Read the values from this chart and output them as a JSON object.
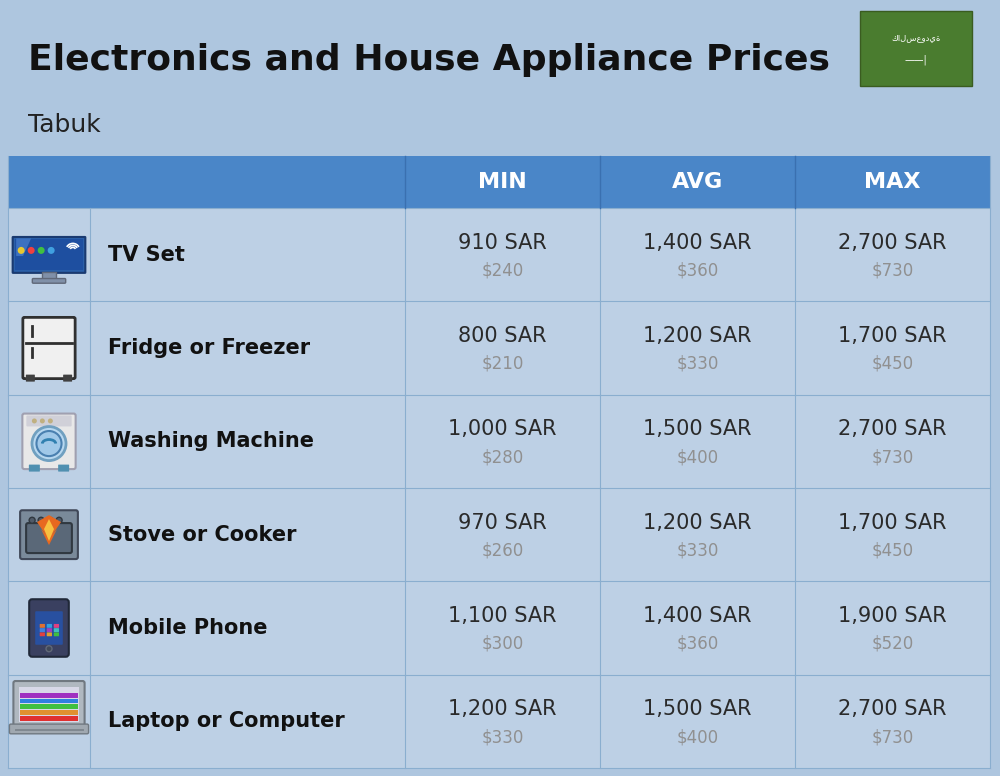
{
  "title": "Electronics and House Appliance Prices",
  "subtitle": "Tabuk",
  "bg_color": "#aec6df",
  "header_color": "#4a86c8",
  "header_text_color": "#ffffff",
  "row_bg_color": "#bdd0e5",
  "divider_color": "#8aaecf",
  "item_name_color": "#111111",
  "sar_color": "#2a2a2a",
  "usd_color": "#909090",
  "columns": [
    "MIN",
    "AVG",
    "MAX"
  ],
  "rows": [
    {
      "name": "TV Set",
      "min_sar": "910 SAR",
      "min_usd": "$240",
      "avg_sar": "1,400 SAR",
      "avg_usd": "$360",
      "max_sar": "2,700 SAR",
      "max_usd": "$730"
    },
    {
      "name": "Fridge or Freezer",
      "min_sar": "800 SAR",
      "min_usd": "$210",
      "avg_sar": "1,200 SAR",
      "avg_usd": "$330",
      "max_sar": "1,700 SAR",
      "max_usd": "$450"
    },
    {
      "name": "Washing Machine",
      "min_sar": "1,000 SAR",
      "min_usd": "$280",
      "avg_sar": "1,500 SAR",
      "avg_usd": "$400",
      "max_sar": "2,700 SAR",
      "max_usd": "$730"
    },
    {
      "name": "Stove or Cooker",
      "min_sar": "970 SAR",
      "min_usd": "$260",
      "avg_sar": "1,200 SAR",
      "avg_usd": "$330",
      "max_sar": "1,700 SAR",
      "max_usd": "$450"
    },
    {
      "name": "Mobile Phone",
      "min_sar": "1,100 SAR",
      "min_usd": "$300",
      "avg_sar": "1,400 SAR",
      "avg_usd": "$360",
      "max_sar": "1,900 SAR",
      "max_usd": "$520"
    },
    {
      "name": "Laptop or Computer",
      "min_sar": "1,200 SAR",
      "min_usd": "$330",
      "avg_sar": "1,500 SAR",
      "avg_usd": "$400",
      "max_sar": "2,700 SAR",
      "max_usd": "$730"
    }
  ],
  "flag_color_green": "#4a7c2f",
  "title_fontsize": 26,
  "subtitle_fontsize": 18,
  "header_fontsize": 16,
  "item_name_fontsize": 15,
  "sar_fontsize": 15,
  "usd_fontsize": 12
}
